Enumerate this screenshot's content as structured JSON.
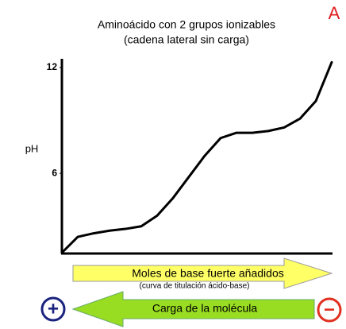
{
  "chart_data": {
    "type": "line",
    "title": "Aminoácido con 2 grupos ionizables",
    "subtitle": "(cadena lateral sin carga)",
    "panel_label": "A",
    "y_label": "pH",
    "x_label": "Moles de base fuerte añadidos",
    "x_sublabel": "(curva de titulación ácido-base)",
    "charge_label": "Carga de la molécula",
    "positive_symbol": "+",
    "negative_symbol": "−",
    "categories": [
      null,
      null,
      null,
      null,
      null,
      null,
      null,
      null,
      null,
      null,
      null,
      null,
      null,
      null,
      null,
      null,
      null,
      null
    ],
    "values": [
      1.5,
      2.4,
      2.6,
      2.75,
      2.85,
      3.0,
      3.6,
      4.6,
      5.8,
      7.0,
      8.0,
      8.3,
      8.3,
      8.4,
      8.6,
      9.1,
      10.1,
      12.3
    ],
    "color": "#000000",
    "ylim": [
      1.5,
      12
    ],
    "yticks": [
      6,
      12
    ]
  }
}
